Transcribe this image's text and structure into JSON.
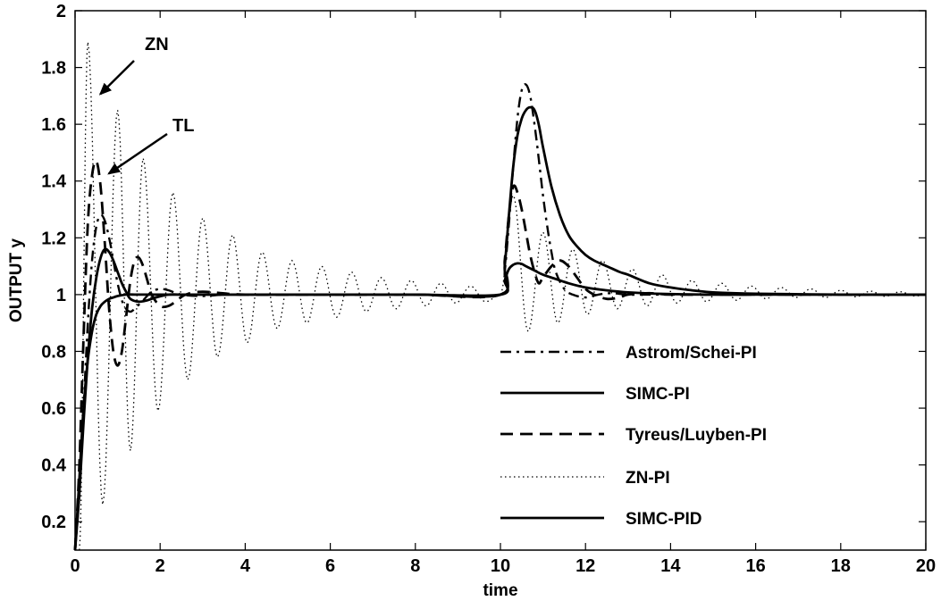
{
  "chart_data": {
    "type": "line",
    "title": "",
    "xlabel": "time",
    "ylabel": "OUTPUT y",
    "xlim": [
      0,
      20
    ],
    "ylim": [
      0.1,
      2
    ],
    "xticks": [
      0,
      2,
      4,
      6,
      8,
      10,
      12,
      14,
      16,
      18,
      20
    ],
    "xtick_labels": [
      "0",
      "2",
      "4",
      "6",
      "8",
      "10",
      "12",
      "14",
      "16",
      "18",
      "20"
    ],
    "yticks": [
      0.2,
      0.4,
      0.6,
      0.8,
      1,
      1.2,
      1.4,
      1.6,
      1.8,
      2
    ],
    "ytick_labels": [
      "0.2",
      "0.4",
      "0.6",
      "0.8",
      "1",
      "1.2",
      "1.4",
      "1.6",
      "1.8",
      "2"
    ],
    "grid": false,
    "legend_position": "lower-right",
    "series": [
      {
        "name": "Astrom/Schei-PI",
        "style": "dashdot",
        "x": [
          0,
          0.1,
          0.2,
          0.3,
          0.4,
          0.5,
          0.6,
          0.7,
          0.8,
          0.9,
          1.0,
          1.1,
          1.2,
          1.3,
          1.4,
          1.6,
          1.8,
          2.0,
          2.2,
          2.5,
          3.0,
          3.5,
          4,
          6,
          8,
          10,
          10.1,
          10.2,
          10.3,
          10.4,
          10.5,
          10.6,
          10.7,
          10.8,
          10.9,
          11.0,
          11.1,
          11.2,
          11.3,
          11.5,
          11.7,
          12.0,
          12.3,
          12.6,
          13.0,
          13.5,
          14,
          15,
          16,
          18,
          20
        ],
        "y": [
          0.1,
          0.3,
          0.6,
          0.9,
          1.12,
          1.24,
          1.28,
          1.26,
          1.2,
          1.12,
          1.04,
          0.98,
          0.95,
          0.94,
          0.95,
          0.98,
          1.01,
          1.02,
          1.015,
          1.0,
          0.995,
          1.0,
          1.0,
          1.0,
          1.0,
          1.0,
          1.08,
          1.25,
          1.45,
          1.62,
          1.72,
          1.74,
          1.7,
          1.6,
          1.48,
          1.35,
          1.24,
          1.15,
          1.08,
          1.02,
          1.0,
          0.99,
          1.0,
          1.005,
          1.0,
          1.0,
          1.0,
          1.0,
          1.0,
          1.0,
          1.0
        ]
      },
      {
        "name": "SIMC-PI",
        "style": "solid",
        "x": [
          0,
          0.1,
          0.2,
          0.3,
          0.4,
          0.5,
          0.6,
          0.7,
          0.8,
          0.9,
          1.0,
          1.1,
          1.2,
          1.3,
          1.5,
          1.7,
          1.9,
          2.2,
          2.5,
          3.0,
          4,
          6,
          8,
          10,
          10.1,
          10.2,
          10.3,
          10.4,
          10.5,
          10.6,
          10.7,
          10.8,
          10.9,
          11.0,
          11.2,
          11.4,
          11.6,
          11.8,
          12.0,
          12.2,
          12.5,
          12.8,
          13.0,
          13.5,
          14.0,
          14.5,
          15.0,
          16.0,
          18.0,
          20.0
        ],
        "y": [
          0.1,
          0.3,
          0.55,
          0.78,
          0.95,
          1.06,
          1.13,
          1.16,
          1.15,
          1.12,
          1.08,
          1.04,
          1.01,
          0.985,
          0.975,
          0.98,
          0.99,
          1.0,
          1.0,
          1.0,
          1.0,
          1.0,
          1.0,
          1.0,
          1.1,
          1.28,
          1.45,
          1.56,
          1.62,
          1.65,
          1.66,
          1.65,
          1.6,
          1.52,
          1.38,
          1.28,
          1.21,
          1.17,
          1.14,
          1.12,
          1.1,
          1.08,
          1.07,
          1.04,
          1.025,
          1.015,
          1.008,
          1.003,
          1.0,
          1.0
        ]
      },
      {
        "name": "Tyreus/Luyben-PI",
        "style": "dashed",
        "x": [
          0,
          0.1,
          0.2,
          0.3,
          0.4,
          0.5,
          0.6,
          0.7,
          0.8,
          0.9,
          1.0,
          1.1,
          1.2,
          1.3,
          1.4,
          1.5,
          1.6,
          1.7,
          1.8,
          2.0,
          2.2,
          2.4,
          2.6,
          3.0,
          4,
          6,
          8,
          10,
          10.1,
          10.2,
          10.3,
          10.4,
          10.5,
          10.6,
          10.7,
          10.8,
          10.9,
          11.0,
          11.2,
          11.4,
          11.6,
          11.8,
          12.0,
          12.2,
          12.5,
          12.8,
          13.0,
          13.5,
          14.0,
          15.0,
          16.0,
          18.0,
          20.0
        ],
        "y": [
          0.1,
          0.4,
          0.85,
          1.25,
          1.42,
          1.47,
          1.38,
          1.18,
          0.95,
          0.8,
          0.75,
          0.8,
          0.92,
          1.05,
          1.12,
          1.13,
          1.1,
          1.05,
          1.0,
          0.96,
          0.96,
          0.98,
          1.0,
          1.01,
          1.0,
          1.0,
          1.0,
          1.0,
          1.12,
          1.28,
          1.38,
          1.36,
          1.3,
          1.22,
          1.14,
          1.08,
          1.04,
          1.06,
          1.1,
          1.12,
          1.1,
          1.06,
          1.02,
          1.0,
          0.985,
          0.99,
          1.0,
          1.005,
          1.0,
          1.0,
          1.0,
          1.0,
          1.0
        ]
      },
      {
        "name": "ZN-PI",
        "style": "dotted",
        "peaks_first_disturbance": [
          [
            0.3,
            1.89
          ],
          [
            0.65,
            0.26
          ],
          [
            1.0,
            1.65
          ],
          [
            1.3,
            0.45
          ],
          [
            1.6,
            1.48
          ],
          [
            1.95,
            0.59
          ],
          [
            2.3,
            1.36
          ],
          [
            2.65,
            0.7
          ],
          [
            3.0,
            1.27
          ],
          [
            3.35,
            0.78
          ],
          [
            3.7,
            1.21
          ],
          [
            4.05,
            0.83
          ],
          [
            4.4,
            1.15
          ],
          [
            4.75,
            0.88
          ],
          [
            5.1,
            1.12
          ],
          [
            5.45,
            0.9
          ],
          [
            5.8,
            1.1
          ],
          [
            6.15,
            0.92
          ],
          [
            6.5,
            1.08
          ],
          [
            6.85,
            0.94
          ],
          [
            7.2,
            1.06
          ],
          [
            7.55,
            0.95
          ],
          [
            7.9,
            1.05
          ],
          [
            8.25,
            0.96
          ],
          [
            8.6,
            1.04
          ],
          [
            8.95,
            0.97
          ],
          [
            9.3,
            1.03
          ],
          [
            9.65,
            0.975
          ],
          [
            10.0,
            1.0
          ]
        ],
        "peaks_second_disturbance": [
          [
            10.3,
            1.35
          ],
          [
            10.65,
            0.87
          ],
          [
            11.0,
            1.22
          ],
          [
            11.35,
            0.9
          ],
          [
            11.7,
            1.16
          ],
          [
            12.05,
            0.93
          ],
          [
            12.4,
            1.12
          ],
          [
            12.75,
            0.95
          ],
          [
            13.1,
            1.09
          ],
          [
            13.45,
            0.96
          ],
          [
            13.8,
            1.07
          ],
          [
            14.15,
            0.97
          ],
          [
            14.5,
            1.05
          ],
          [
            14.85,
            0.975
          ],
          [
            15.2,
            1.04
          ],
          [
            15.55,
            0.98
          ],
          [
            15.9,
            1.03
          ],
          [
            16.25,
            0.985
          ],
          [
            16.6,
            1.025
          ],
          [
            16.95,
            0.99
          ],
          [
            17.3,
            1.02
          ],
          [
            17.65,
            0.99
          ],
          [
            18.0,
            1.015
          ],
          [
            18.35,
            0.992
          ],
          [
            18.7,
            1.012
          ],
          [
            19.05,
            0.994
          ],
          [
            19.4,
            1.01
          ],
          [
            19.75,
            0.995
          ],
          [
            20.0,
            1.0
          ]
        ]
      },
      {
        "name": "SIMC-PID",
        "style": "solid",
        "x": [
          0,
          0.1,
          0.2,
          0.3,
          0.4,
          0.5,
          0.6,
          0.7,
          0.8,
          0.9,
          1.0,
          1.2,
          1.4,
          1.6,
          2.0,
          2.5,
          3.0,
          4,
          6,
          8,
          10,
          10.1,
          10.2,
          10.3,
          10.4,
          10.5,
          10.6,
          10.8,
          11.0,
          11.3,
          11.6,
          12.0,
          12.5,
          13.0,
          13.5,
          14.0,
          15.0,
          16.0,
          18.0,
          20.0
        ],
        "y": [
          0.1,
          0.35,
          0.6,
          0.77,
          0.87,
          0.93,
          0.96,
          0.975,
          0.985,
          0.99,
          0.995,
          1.0,
          1.0,
          1.0,
          1.0,
          1.0,
          1.0,
          1.0,
          1.0,
          1.0,
          1.0,
          1.05,
          1.09,
          1.105,
          1.11,
          1.108,
          1.1,
          1.085,
          1.07,
          1.055,
          1.04,
          1.025,
          1.015,
          1.008,
          1.004,
          1.002,
          1.0,
          1.0,
          1.0,
          1.0
        ]
      }
    ],
    "annotations": [
      {
        "text": "ZN",
        "points_to": [
          0.3,
          1.7
        ]
      },
      {
        "text": "TL",
        "points_to": [
          0.5,
          1.42
        ]
      }
    ]
  }
}
